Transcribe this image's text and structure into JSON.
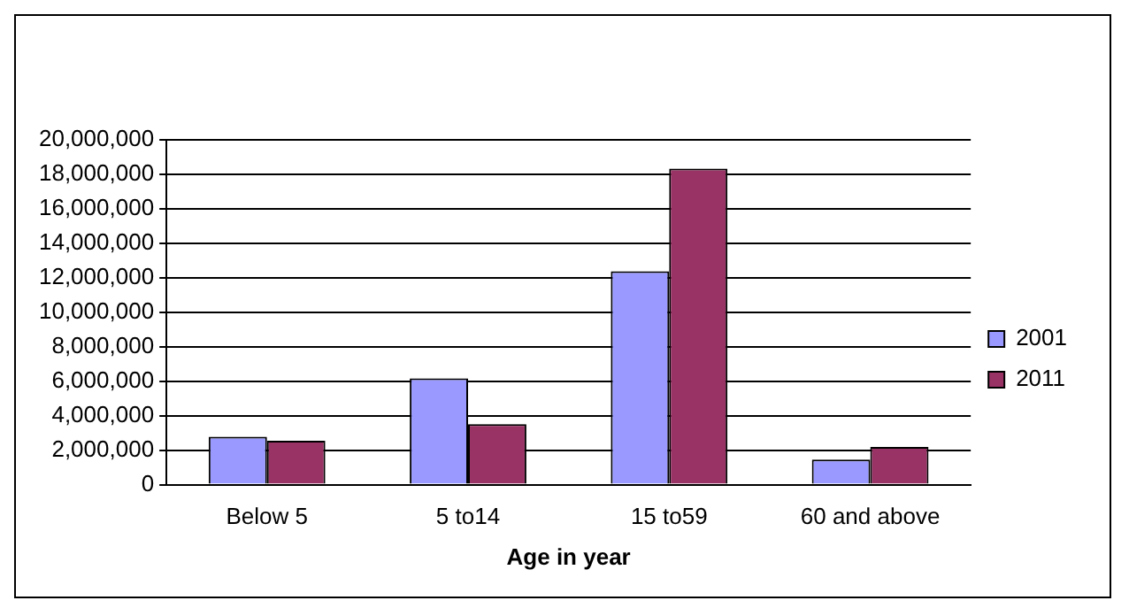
{
  "chart_data": {
    "type": "bar",
    "xlabel": "Age in year",
    "categories": [
      "Below 5",
      "5 to14",
      "15 to59",
      "60 and above"
    ],
    "series": [
      {
        "name": "2001",
        "color": "#9999ff",
        "values": [
          2780000,
          6160000,
          12380000,
          1460000
        ]
      },
      {
        "name": "2011",
        "color": "#993366",
        "values": [
          2540000,
          3510000,
          18330000,
          2190000
        ]
      }
    ],
    "ylim": [
      0,
      20000000
    ],
    "yticks": [
      {
        "value": 0,
        "label": "0"
      },
      {
        "value": 2000000,
        "label": "2,000,000"
      },
      {
        "value": 4000000,
        "label": "4,000,000"
      },
      {
        "value": 6000000,
        "label": "6,000,000"
      },
      {
        "value": 8000000,
        "label": "8,000,000"
      },
      {
        "value": 10000000,
        "label": "10,000,000"
      },
      {
        "value": 12000000,
        "label": "12,000,000"
      },
      {
        "value": 14000000,
        "label": "14,000,000"
      },
      {
        "value": 16000000,
        "label": "16,000,000"
      },
      {
        "value": 18000000,
        "label": "18,000,000"
      },
      {
        "value": 20000000,
        "label": "20,000,000"
      }
    ],
    "grid": "y",
    "legend": "right"
  }
}
